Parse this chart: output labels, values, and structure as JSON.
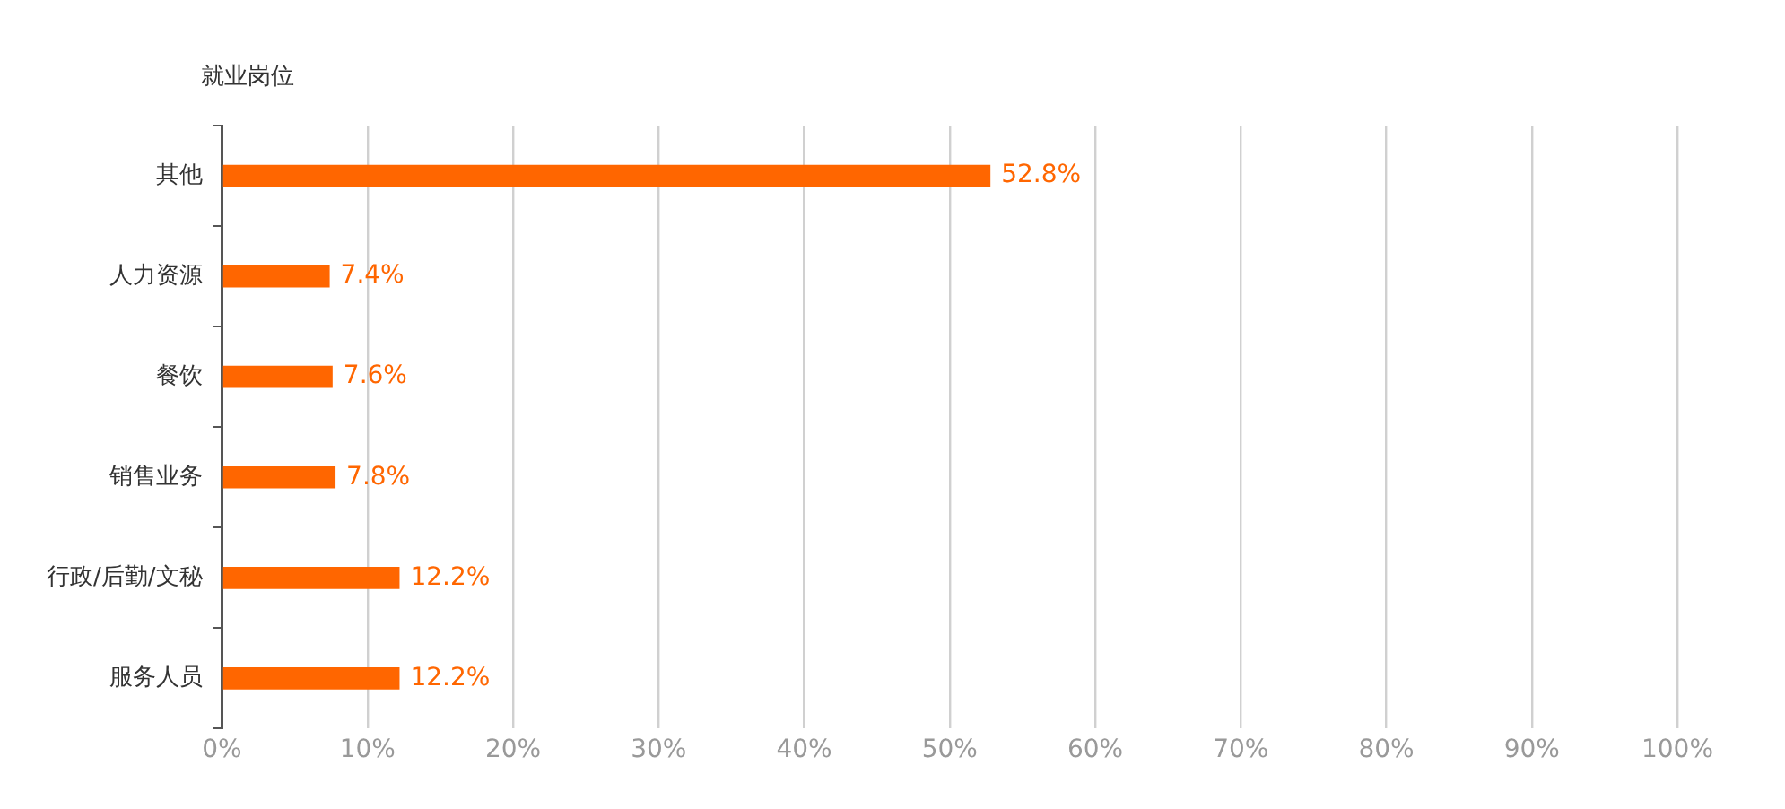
{
  "chart_data": {
    "type": "bar",
    "orientation": "horizontal",
    "ylabel": "就业岗位",
    "categories": [
      "其他",
      "人力资源",
      "餐饮",
      "销售业务",
      "行政/后勤/文秘",
      "服务人员"
    ],
    "values": [
      52.8,
      7.4,
      7.6,
      7.8,
      12.2,
      12.2
    ],
    "value_labels": [
      "52.8%",
      "7.4%",
      "7.6%",
      "7.8%",
      "12.2%",
      "12.2%"
    ],
    "color": "#ff6600",
    "xlim": [
      0,
      100
    ],
    "xticks": [
      {
        "value": 0,
        "label": "0%"
      },
      {
        "value": 10,
        "label": "10%"
      },
      {
        "value": 20,
        "label": "20%"
      },
      {
        "value": 30,
        "label": "30%"
      },
      {
        "value": 40,
        "label": "40%"
      },
      {
        "value": 50,
        "label": "50%"
      },
      {
        "value": 60,
        "label": "60%"
      },
      {
        "value": 70,
        "label": "70%"
      },
      {
        "value": 80,
        "label": "80%"
      },
      {
        "value": 90,
        "label": "90%"
      },
      {
        "value": 100,
        "label": "100%"
      }
    ],
    "grid": "x",
    "legend": false
  }
}
